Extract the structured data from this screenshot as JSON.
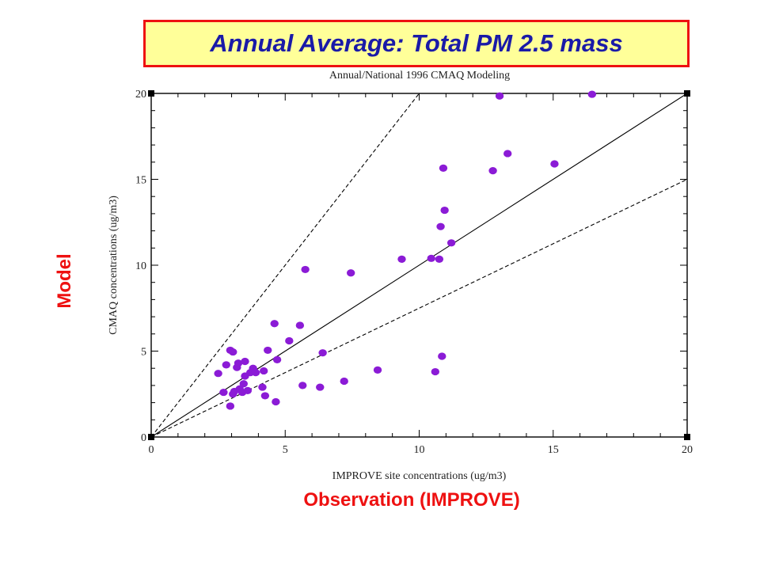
{
  "slide": {
    "title": "Annual Average: Total PM 2.5 mass",
    "model_label": "Model",
    "observation_label": "Observation (IMPROVE)"
  },
  "colors": {
    "title_border": "#ee1111",
    "title_fill": "#ffff99",
    "title_text": "#1a1aa8",
    "point": "#8b1bd6",
    "outer_labels": "#ee1111"
  },
  "chart_data": {
    "type": "scatter",
    "title": "Annual/National 1996 CMAQ Modeling",
    "xlabel": "IMPROVE site concentrations (ug/m3)",
    "ylabel": "CMAQ concentrations (ug/m3)",
    "xlim": [
      0,
      20
    ],
    "ylim": [
      0,
      20
    ],
    "xticks": [
      "0",
      "5",
      "10",
      "15",
      "20"
    ],
    "yticks": [
      "0",
      "5",
      "10",
      "15",
      "20"
    ],
    "grid": false,
    "reference_lines": [
      {
        "style": "solid",
        "slope": 1.0
      },
      {
        "style": "dashed",
        "slope": 2.0
      },
      {
        "style": "dashed",
        "slope": 0.75
      }
    ],
    "points": [
      [
        2.5,
        3.7
      ],
      [
        2.8,
        4.2
      ],
      [
        2.95,
        5.05
      ],
      [
        3.05,
        4.95
      ],
      [
        2.7,
        2.6
      ],
      [
        2.95,
        1.8
      ],
      [
        3.05,
        2.5
      ],
      [
        3.1,
        2.65
      ],
      [
        3.2,
        4.05
      ],
      [
        3.25,
        4.3
      ],
      [
        3.3,
        2.8
      ],
      [
        3.4,
        2.6
      ],
      [
        3.45,
        3.1
      ],
      [
        3.5,
        4.4
      ],
      [
        3.5,
        3.55
      ],
      [
        3.6,
        2.7
      ],
      [
        3.7,
        3.75
      ],
      [
        3.8,
        4.0
      ],
      [
        3.9,
        3.75
      ],
      [
        4.15,
        2.9
      ],
      [
        4.2,
        3.85
      ],
      [
        4.25,
        2.4
      ],
      [
        4.35,
        5.05
      ],
      [
        4.65,
        2.05
      ],
      [
        4.7,
        4.5
      ],
      [
        4.6,
        6.6
      ],
      [
        5.15,
        5.6
      ],
      [
        5.55,
        6.5
      ],
      [
        5.65,
        3.0
      ],
      [
        5.75,
        9.75
      ],
      [
        6.3,
        2.9
      ],
      [
        6.4,
        4.9
      ],
      [
        7.2,
        3.25
      ],
      [
        7.45,
        9.55
      ],
      [
        8.45,
        3.9
      ],
      [
        9.35,
        10.35
      ],
      [
        10.45,
        10.4
      ],
      [
        10.6,
        3.8
      ],
      [
        10.75,
        10.35
      ],
      [
        10.8,
        12.25
      ],
      [
        10.85,
        4.7
      ],
      [
        10.9,
        15.65
      ],
      [
        10.95,
        13.2
      ],
      [
        11.2,
        11.3
      ],
      [
        12.75,
        15.5
      ],
      [
        13.0,
        19.85
      ],
      [
        13.3,
        16.5
      ],
      [
        15.05,
        15.9
      ],
      [
        16.45,
        19.95
      ]
    ]
  }
}
